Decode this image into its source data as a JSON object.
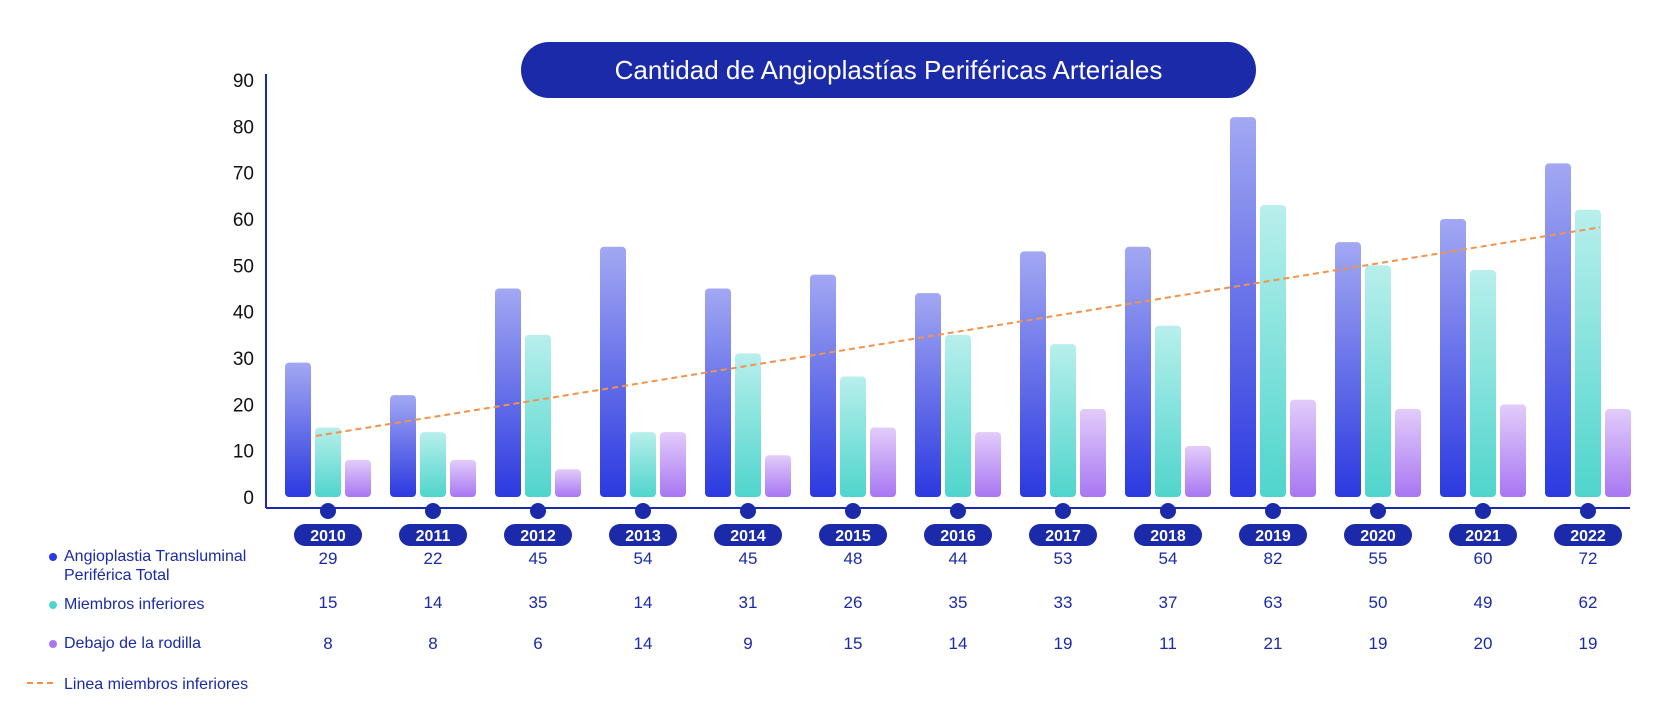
{
  "colors": {
    "accent": "#1a2aa8",
    "series1_top": "#a2a8f2",
    "series1_bottom": "#2b39e0",
    "series2_top": "#b8efec",
    "series2_bottom": "#4fd5cc",
    "series3_top": "#e2ccfa",
    "series3_bottom": "#a877f2",
    "trend": "#f5924a"
  },
  "chart_data": {
    "type": "bar",
    "title": "Cantidad de Angioplastías Periféricas Arteriales",
    "categories": [
      "2010",
      "2011",
      "2012",
      "2013",
      "2014",
      "2015",
      "2016",
      "2017",
      "2018",
      "2019",
      "2020",
      "2021",
      "2022"
    ],
    "series": [
      {
        "name": "Angioplastia Transluminal Periférica Total",
        "name_lines": [
          "Angioplastia Transluminal",
          "Periférica Total"
        ],
        "values": [
          29,
          22,
          45,
          54,
          45,
          48,
          44,
          53,
          54,
          82,
          55,
          60,
          72
        ]
      },
      {
        "name": "Miembros inferiores",
        "values": [
          15,
          14,
          35,
          14,
          31,
          26,
          35,
          33,
          37,
          63,
          50,
          49,
          62
        ]
      },
      {
        "name": "Debajo de la rodilla",
        "values": [
          8,
          8,
          6,
          14,
          9,
          15,
          14,
          19,
          11,
          21,
          19,
          20,
          19
        ]
      }
    ],
    "trend_line": {
      "name": "Linea miembros inferiores",
      "type": "linear",
      "style": "dashed"
    },
    "ylim": [
      0,
      90
    ],
    "yticks": [
      0,
      10,
      20,
      30,
      40,
      50,
      60,
      70,
      80,
      90
    ],
    "grid": false,
    "legend_placement": "bottom-left"
  }
}
